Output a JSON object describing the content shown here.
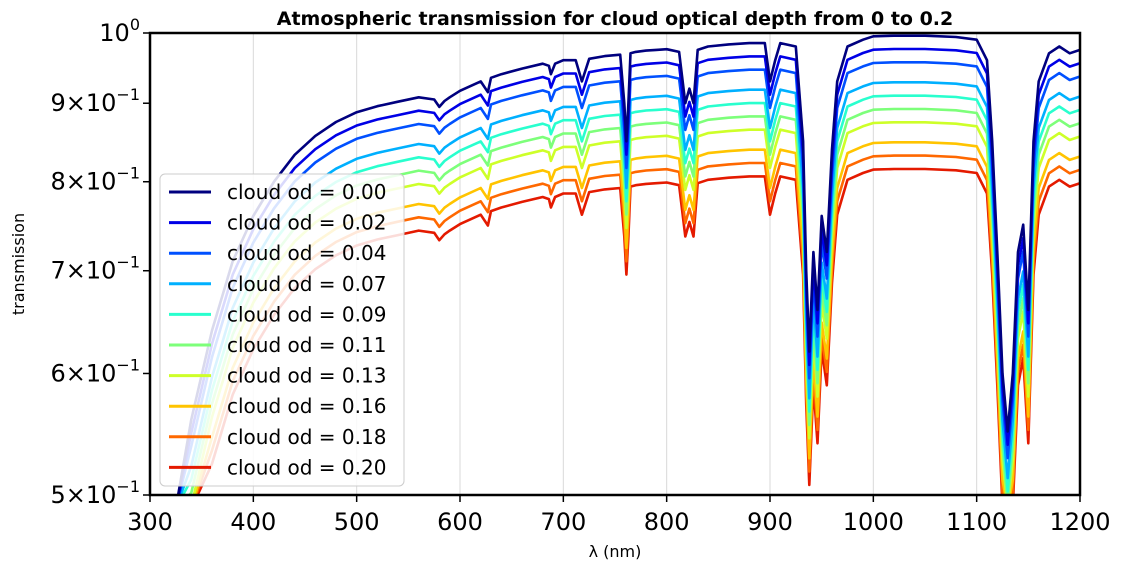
{
  "chart_data": {
    "type": "line",
    "title": "Atmospheric transmission for cloud optical depth from 0 to 0.2",
    "xlabel": "λ (nm)",
    "ylabel": "transmission",
    "xlim": [
      300,
      1200
    ],
    "ylim": [
      0.5,
      1.0
    ],
    "yscale": "log",
    "grid": "vertical",
    "legend_position": "lower-left",
    "x_ticks": [
      300,
      400,
      500,
      600,
      700,
      800,
      900,
      1000,
      1100,
      1200
    ],
    "x_tick_labels": [
      "300",
      "400",
      "500",
      "600",
      "700",
      "800",
      "900",
      "1000",
      "1100",
      "1200"
    ],
    "y_ticks": [
      0.5,
      0.6,
      0.7,
      0.8,
      0.9,
      1.0
    ],
    "y_tick_labels": [
      {
        "mantissa": "5",
        "exp": "−1"
      },
      {
        "mantissa": "6",
        "exp": "−1"
      },
      {
        "mantissa": "7",
        "exp": "−1"
      },
      {
        "mantissa": "8",
        "exp": "−1"
      },
      {
        "mantissa": "9",
        "exp": "−1"
      },
      {
        "mantissa": "",
        "exp": "0"
      }
    ],
    "series": [
      {
        "name": "cloud od = 0.00",
        "od": 0.0,
        "color": "#00007f"
      },
      {
        "name": "cloud od = 0.02",
        "od": 0.02,
        "color": "#0000e6"
      },
      {
        "name": "cloud od = 0.04",
        "od": 0.04,
        "color": "#0050ff"
      },
      {
        "name": "cloud od = 0.07",
        "od": 0.07,
        "color": "#00b0ff"
      },
      {
        "name": "cloud od = 0.09",
        "od": 0.09,
        "color": "#29ffce"
      },
      {
        "name": "cloud od = 0.11",
        "od": 0.11,
        "color": "#7dff7a"
      },
      {
        "name": "cloud od = 0.13",
        "od": 0.13,
        "color": "#ceff29"
      },
      {
        "name": "cloud od = 0.16",
        "od": 0.16,
        "color": "#ffc400"
      },
      {
        "name": "cloud od = 0.18",
        "od": 0.18,
        "color": "#ff6800"
      },
      {
        "name": "cloud od = 0.20",
        "od": 0.2,
        "color": "#e41a00"
      }
    ],
    "base_curve": {
      "x": [
        325,
        340,
        360,
        380,
        400,
        420,
        440,
        460,
        480,
        500,
        520,
        540,
        560,
        575,
        580,
        585,
        590,
        600,
        620,
        627,
        630,
        640,
        660,
        680,
        686,
        688,
        692,
        700,
        712,
        718,
        725,
        740,
        755,
        759,
        761,
        763,
        765,
        770,
        780,
        790,
        800,
        812,
        818,
        822,
        826,
        830,
        840,
        860,
        880,
        895,
        900,
        905,
        910,
        925,
        932,
        935,
        938,
        942,
        946,
        950,
        955,
        960,
        965,
        975,
        990,
        1000,
        1020,
        1050,
        1080,
        1100,
        1110,
        1115,
        1120,
        1125,
        1130,
        1135,
        1140,
        1145,
        1150,
        1155,
        1160,
        1170,
        1180,
        1190,
        1200
      ],
      "y": [
        0.48,
        0.56,
        0.64,
        0.71,
        0.76,
        0.8,
        0.833,
        0.857,
        0.875,
        0.888,
        0.896,
        0.902,
        0.908,
        0.905,
        0.895,
        0.903,
        0.908,
        0.917,
        0.93,
        0.915,
        0.935,
        0.94,
        0.948,
        0.955,
        0.952,
        0.94,
        0.955,
        0.96,
        0.96,
        0.93,
        0.962,
        0.966,
        0.968,
        0.9,
        0.85,
        0.9,
        0.97,
        0.972,
        0.974,
        0.975,
        0.976,
        0.972,
        0.9,
        0.92,
        0.9,
        0.975,
        0.98,
        0.983,
        0.985,
        0.985,
        0.93,
        0.96,
        0.985,
        0.98,
        0.85,
        0.7,
        0.62,
        0.72,
        0.66,
        0.76,
        0.72,
        0.84,
        0.93,
        0.98,
        0.99,
        0.995,
        0.996,
        0.996,
        0.994,
        0.99,
        0.96,
        0.85,
        0.72,
        0.6,
        0.55,
        0.6,
        0.72,
        0.75,
        0.66,
        0.85,
        0.93,
        0.97,
        0.98,
        0.97,
        0.975
      ]
    }
  }
}
